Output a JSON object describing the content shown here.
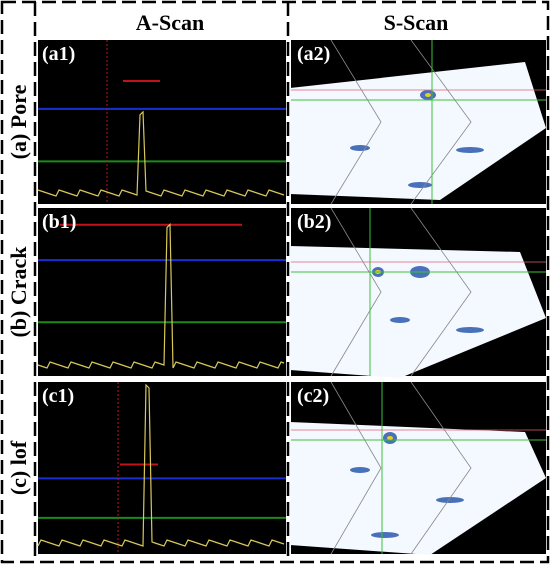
{
  "columns": [
    "A-Scan",
    "S-Scan"
  ],
  "rows": [
    {
      "label": "(a) Pore",
      "panels": [
        "(a1)",
        "(a2)"
      ]
    },
    {
      "label": "(b) Crack",
      "panels": [
        "(b1)",
        "(b2)"
      ]
    },
    {
      "label": "(c) lof",
      "panels": [
        "(c1)",
        "(c2)"
      ]
    }
  ]
}
